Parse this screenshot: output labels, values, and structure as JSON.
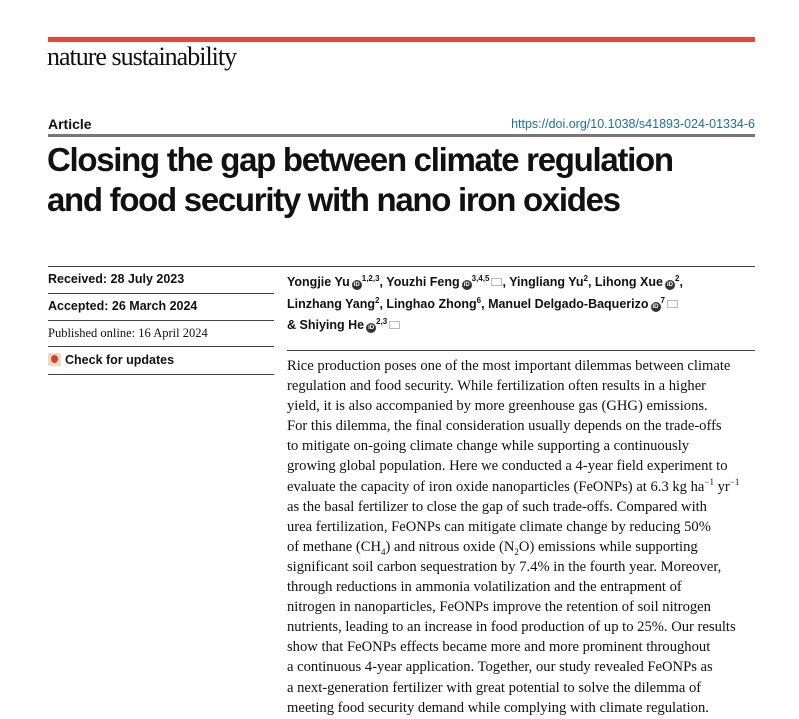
{
  "journal": {
    "name": "nature sustainability",
    "brand_color": "#e8473a"
  },
  "article_type": "Article",
  "doi": "https://doi.org/10.1038/s41893-024-01334-6",
  "title": [
    "Closing the gap between climate regulation",
    "and food security with nano iron oxides"
  ],
  "dates": {
    "received": "Received: 28 July 2023",
    "accepted": "Accepted: 26 March 2024",
    "published": "Published online: 16 April 2024"
  },
  "check_updates": "Check for updates",
  "authors": [
    {
      "name": "Yongjie Yu",
      "orcid": true,
      "aff": "1,2,3",
      "mail": false,
      "sep": ", "
    },
    {
      "name": "Youzhi Feng",
      "orcid": true,
      "aff": "3,4,5",
      "mail": true,
      "sep": ", "
    },
    {
      "name": "Yingliang Yu",
      "orcid": false,
      "aff": "2",
      "mail": false,
      "sep": ", "
    },
    {
      "name": "Lihong Xue",
      "orcid": true,
      "aff": "2",
      "mail": false,
      "sep": ",",
      "br": true
    },
    {
      "name": "Linzhang Yang",
      "orcid": false,
      "aff": "2",
      "mail": false,
      "sep": ", "
    },
    {
      "name": "Linghao Zhong",
      "orcid": false,
      "aff": "6",
      "mail": false,
      "sep": ", "
    },
    {
      "name": "Manuel Delgado-Baquerizo",
      "orcid": true,
      "aff": "7",
      "mail": true,
      "sep": "",
      "br": true
    },
    {
      "name": "& Shiying He",
      "orcid": true,
      "aff": "2,3",
      "mail": true,
      "sep": ""
    }
  ],
  "abstract": [
    [
      {
        "t": "Rice production poses one of the most important dilemmas between climate"
      }
    ],
    [
      {
        "t": "regulation and food security. While fertilization often results in a higher"
      }
    ],
    [
      {
        "t": "yield, it is also accompanied by more greenhouse gas (GHG) emissions."
      }
    ],
    [
      {
        "t": "For this dilemma, the final consideration usually depends on the trade-offs"
      }
    ],
    [
      {
        "t": "to mitigate on-going climate change while supporting a continuously"
      }
    ],
    [
      {
        "t": "growing global population. Here we conducted a 4-year field experiment to"
      }
    ],
    [
      {
        "t": "evaluate the capacity of iron oxide nanoparticles (FeONPs) at 6.3 kg ha"
      },
      {
        "t": "−1",
        "s": "sup"
      },
      {
        "t": " yr"
      },
      {
        "t": "−1",
        "s": "sup"
      }
    ],
    [
      {
        "t": "as the basal fertilizer to close the gap of such trade-offs. Compared with"
      }
    ],
    [
      {
        "t": "urea fertilization, FeONPs can mitigate climate change by reducing 50%"
      }
    ],
    [
      {
        "t": "of methane (CH"
      },
      {
        "t": "4",
        "s": "sub"
      },
      {
        "t": ") and nitrous oxide (N"
      },
      {
        "t": "2",
        "s": "sub"
      },
      {
        "t": "O) emissions while supporting"
      }
    ],
    [
      {
        "t": "significant soil carbon sequestration by 7.4% in the fourth year. Moreover,"
      }
    ],
    [
      {
        "t": "through reductions in ammonia volatilization and the entrapment of"
      }
    ],
    [
      {
        "t": "nitrogen in nanoparticles, FeONPs improve the retention of soil nitrogen"
      }
    ],
    [
      {
        "t": "nutrients, leading to an increase in food production of up to 25%. Our results"
      }
    ],
    [
      {
        "t": "show that FeONPs effects became more and more prominent throughout"
      }
    ],
    [
      {
        "t": "a continuous 4-year application. Together, our study revealed FeONPs as"
      }
    ],
    [
      {
        "t": "a next-generation fertilizer with great potential to solve the dilemma of"
      }
    ],
    [
      {
        "t": "meeting food security demand while complying with climate regulation."
      }
    ]
  ]
}
